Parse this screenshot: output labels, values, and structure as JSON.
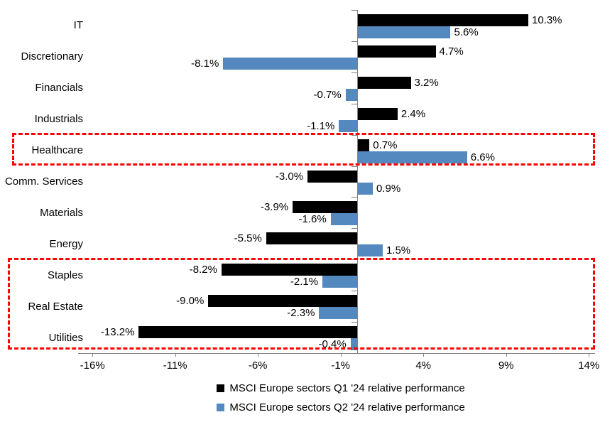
{
  "chart_data": {
    "type": "bar",
    "orientation": "horizontal",
    "title": "",
    "categories": [
      "IT",
      "Discretionary",
      "Financials",
      "Industrials",
      "Healthcare",
      "Comm. Services",
      "Materials",
      "Energy",
      "Staples",
      "Real Estate",
      "Utilities"
    ],
    "series": [
      {
        "name": "MSCI Europe sectors Q1 '24 relative performance",
        "color": "#000000",
        "values": [
          10.3,
          4.7,
          3.2,
          2.4,
          0.7,
          -3.0,
          -3.9,
          -5.5,
          -8.2,
          -9.0,
          -13.2
        ],
        "labels": [
          "10.3%",
          "4.7%",
          "3.2%",
          "2.4%",
          "0.7%",
          "-3.0%",
          "-3.9%",
          "-5.5%",
          "-8.2%",
          "-9.0%",
          "-13.2%"
        ]
      },
      {
        "name": "MSCI Europe sectors Q2 '24 relative performance",
        "color": "#5389BE",
        "values": [
          5.6,
          -8.1,
          -0.7,
          -1.1,
          6.6,
          0.9,
          -1.6,
          1.5,
          -2.1,
          -2.3,
          -0.4
        ],
        "labels": [
          "5.6%",
          "-8.1%",
          "-0.7%",
          "-1.1%",
          "6.6%",
          "0.9%",
          "-1.6%",
          "1.5%",
          "-2.1%",
          "-2.3%",
          "-0.4%"
        ]
      }
    ],
    "x_axis": {
      "tick_labels": [
        "-16%",
        "-11%",
        "-6%",
        "-1%",
        "4%",
        "9%",
        "14%"
      ],
      "tick_values": [
        -16,
        -11,
        -6,
        -1,
        4,
        9,
        14
      ],
      "range": [
        -16.9,
        14.4
      ]
    },
    "grid": false,
    "legend_position": "bottom-center",
    "axis_color": "#808080",
    "value_label_color": "#000000",
    "highlights": [
      {
        "name": "healthcare-highlight-box",
        "categories": [
          "Healthcare"
        ],
        "color": "#FF0000",
        "style": "dashed"
      },
      {
        "name": "defensives-highlight-box",
        "categories": [
          "Staples",
          "Real Estate",
          "Utilities"
        ],
        "color": "#FF0000",
        "style": "dashed"
      }
    ]
  }
}
